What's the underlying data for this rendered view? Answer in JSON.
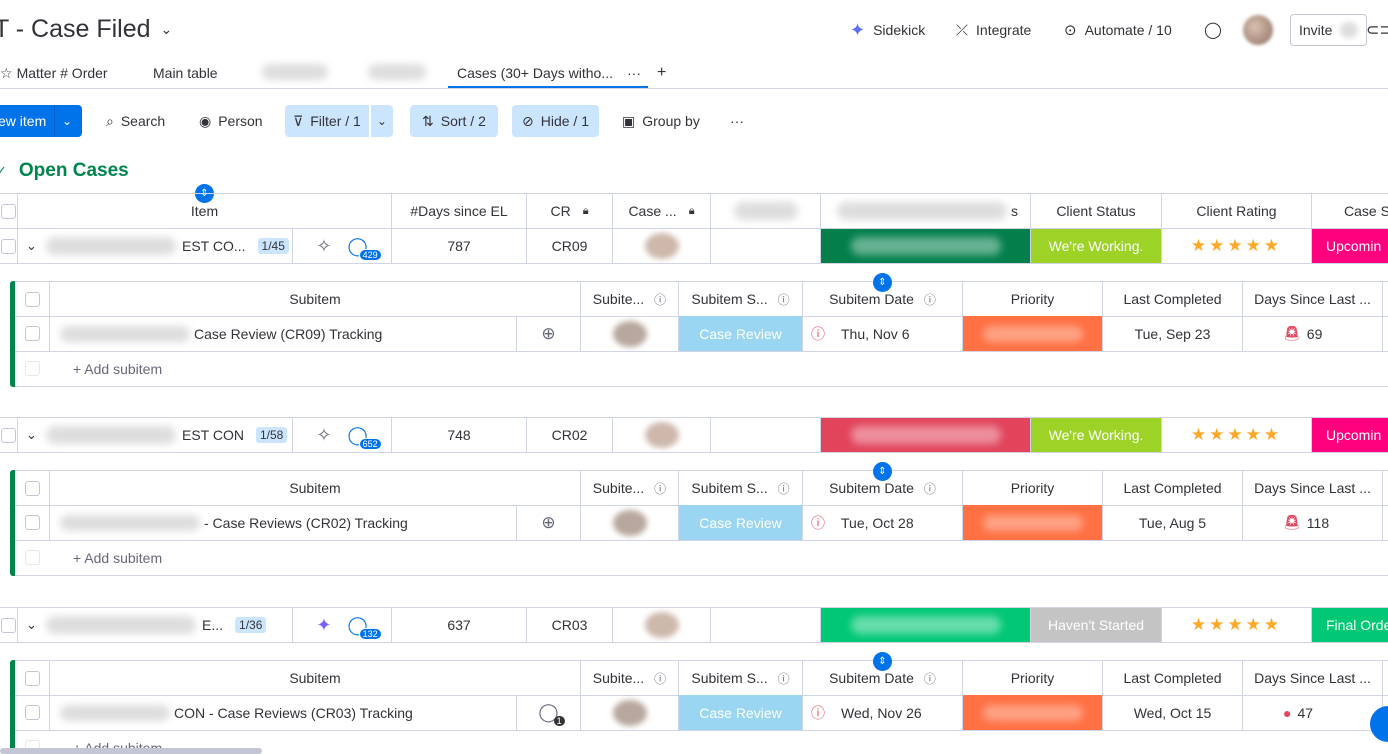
{
  "header": {
    "title": "T - Case Filed",
    "sidekick": "Sidekick",
    "integrate": "Integrate",
    "automate": "Automate / 10",
    "invite": "Invite"
  },
  "tabs": {
    "matter_order": "Matter # Order",
    "main_table": "Main table",
    "active": "Cases (30+ Days witho...",
    "more": "···",
    "add": "+"
  },
  "toolbar": {
    "new_item": "ew item",
    "search": "Search",
    "person": "Person",
    "filter": "Filter / 1",
    "sort": "Sort / 2",
    "hide": "Hide / 1",
    "group_by": "Group by",
    "more": "···"
  },
  "group": {
    "title": "Open Cases"
  },
  "columns": {
    "item": "Item",
    "days": "#Days since EL",
    "cr": "CR",
    "case": "Case ...",
    "status": "s",
    "client_status": "Client Status",
    "client_rating": "Client Rating",
    "case_s": "Case S"
  },
  "sub_columns": {
    "subitem": "Subitem",
    "subite": "Subite...",
    "subitem_s": "Subitem S...",
    "subitem_date": "Subitem Date",
    "priority": "Priority",
    "last_completed": "Last Completed",
    "days_since": "Days Since Last ..."
  },
  "items": [
    {
      "name": "EST CO...",
      "count": "1/45",
      "updates": "429",
      "days": "787",
      "cr": "CR09",
      "client_status": "We're Working.",
      "rating": "★★★★★",
      "case_s": "Upcomin",
      "sub": {
        "name": "Case Review (CR09) Tracking",
        "status": "Case Review",
        "date": "Thu, Nov 6",
        "last": "Tue, Sep 23",
        "days": "69"
      }
    },
    {
      "name": "EST CON",
      "count": "1/58",
      "updates": "652",
      "days": "748",
      "cr": "CR02",
      "client_status": "We're Working.",
      "rating": "★★★★★",
      "case_s": "Upcomin",
      "sub": {
        "name": "- Case Reviews (CR02) Tracking",
        "status": "Case Review",
        "date": "Tue, Oct 28",
        "last": "Tue, Aug 5",
        "days": "118"
      }
    },
    {
      "name": "E...",
      "count": "1/36",
      "updates": "132",
      "days": "637",
      "cr": "CR03",
      "client_status": "Haven't Started",
      "rating": "★★★★★",
      "case_s": "Final Orde",
      "sub": {
        "name": "CON - Case Reviews (CR03) Tracking",
        "status": "Case Review",
        "date": "Wed, Nov 26",
        "last": "Wed, Oct 15",
        "days": "47",
        "updates": "1"
      }
    }
  ],
  "add_subitem": "+ Add subitem",
  "colors": {
    "primary": "#0073ea",
    "green_dark": "#037f4c",
    "red": "#e2445c",
    "green": "#00c875",
    "lime": "#9cd326",
    "grey": "#c4c4c4",
    "pink": "#ff007f",
    "light_blue": "#9ad6f2",
    "orange": "#ff7043"
  }
}
